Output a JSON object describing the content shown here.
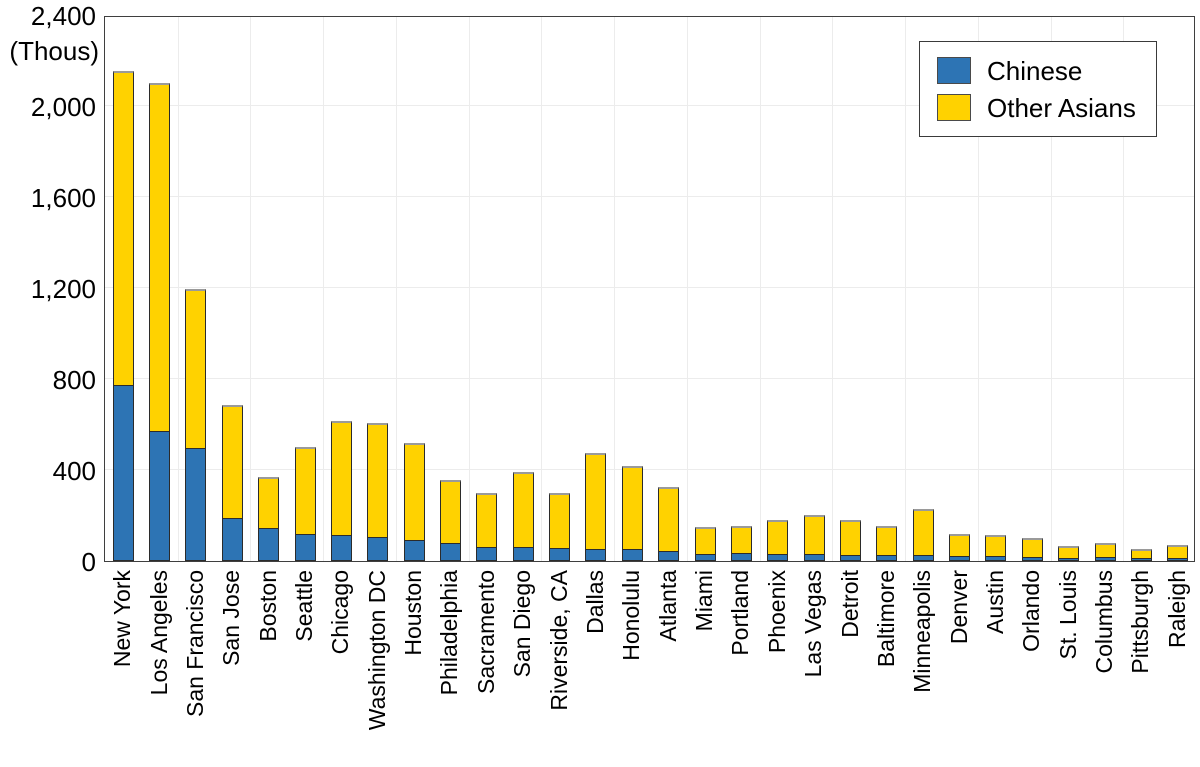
{
  "chart_data": {
    "type": "bar",
    "stacked": true,
    "title": "",
    "unit_label": "(Thous)",
    "xlabel": "",
    "ylabel": "",
    "ylim": [
      0,
      2400
    ],
    "ytick_interval": 400,
    "ytick_labels": [
      "0",
      "400",
      "800",
      "1,200",
      "1,600",
      "2,000",
      "2,400"
    ],
    "grid": "on",
    "legend_position": "top-right",
    "categories": [
      "New York",
      "Los Angeles",
      "San Francisco",
      "San Jose",
      "Boston",
      "Seattle",
      "Chicago",
      "Washington DC",
      "Houston",
      "Philadelphia",
      "Sacramento",
      "San Diego",
      "Riverside, CA",
      "Dallas",
      "Honolulu",
      "Atlanta",
      "Miami",
      "Portland",
      "Phoenix",
      "Las Vegas",
      "Detroit",
      "Baltimore",
      "Minneapolis",
      "Denver",
      "Austin",
      "Orlando",
      "St. Louis",
      "Columbus",
      "Pittsburgh",
      "Raleigh"
    ],
    "series": [
      {
        "name": "Chinese",
        "color": "#2d74b4",
        "values": [
          775,
          570,
          497,
          191,
          147,
          117,
          113,
          107,
          92,
          81,
          63,
          63,
          58,
          55,
          52,
          45,
          33,
          37,
          33,
          30,
          27,
          28,
          26,
          21,
          20,
          17,
          14,
          16,
          13,
          13
        ]
      },
      {
        "name": "Other Asians",
        "color": "#ffd200",
        "values": [
          1385,
          1535,
          703,
          498,
          228,
          388,
          507,
          503,
          433,
          279,
          242,
          332,
          247,
          425,
          371,
          285,
          119,
          120,
          153,
          178,
          159,
          129,
          209,
          104,
          97,
          90,
          55,
          68,
          46,
          60
        ]
      }
    ],
    "style": {
      "bar_border_color": "#2b2b2b",
      "bar_top_cap_color": "#9a9a9a",
      "plot_border_color": "#3f3f3f",
      "gridline_color": "#ececec",
      "background_color": "#ffffff"
    }
  }
}
